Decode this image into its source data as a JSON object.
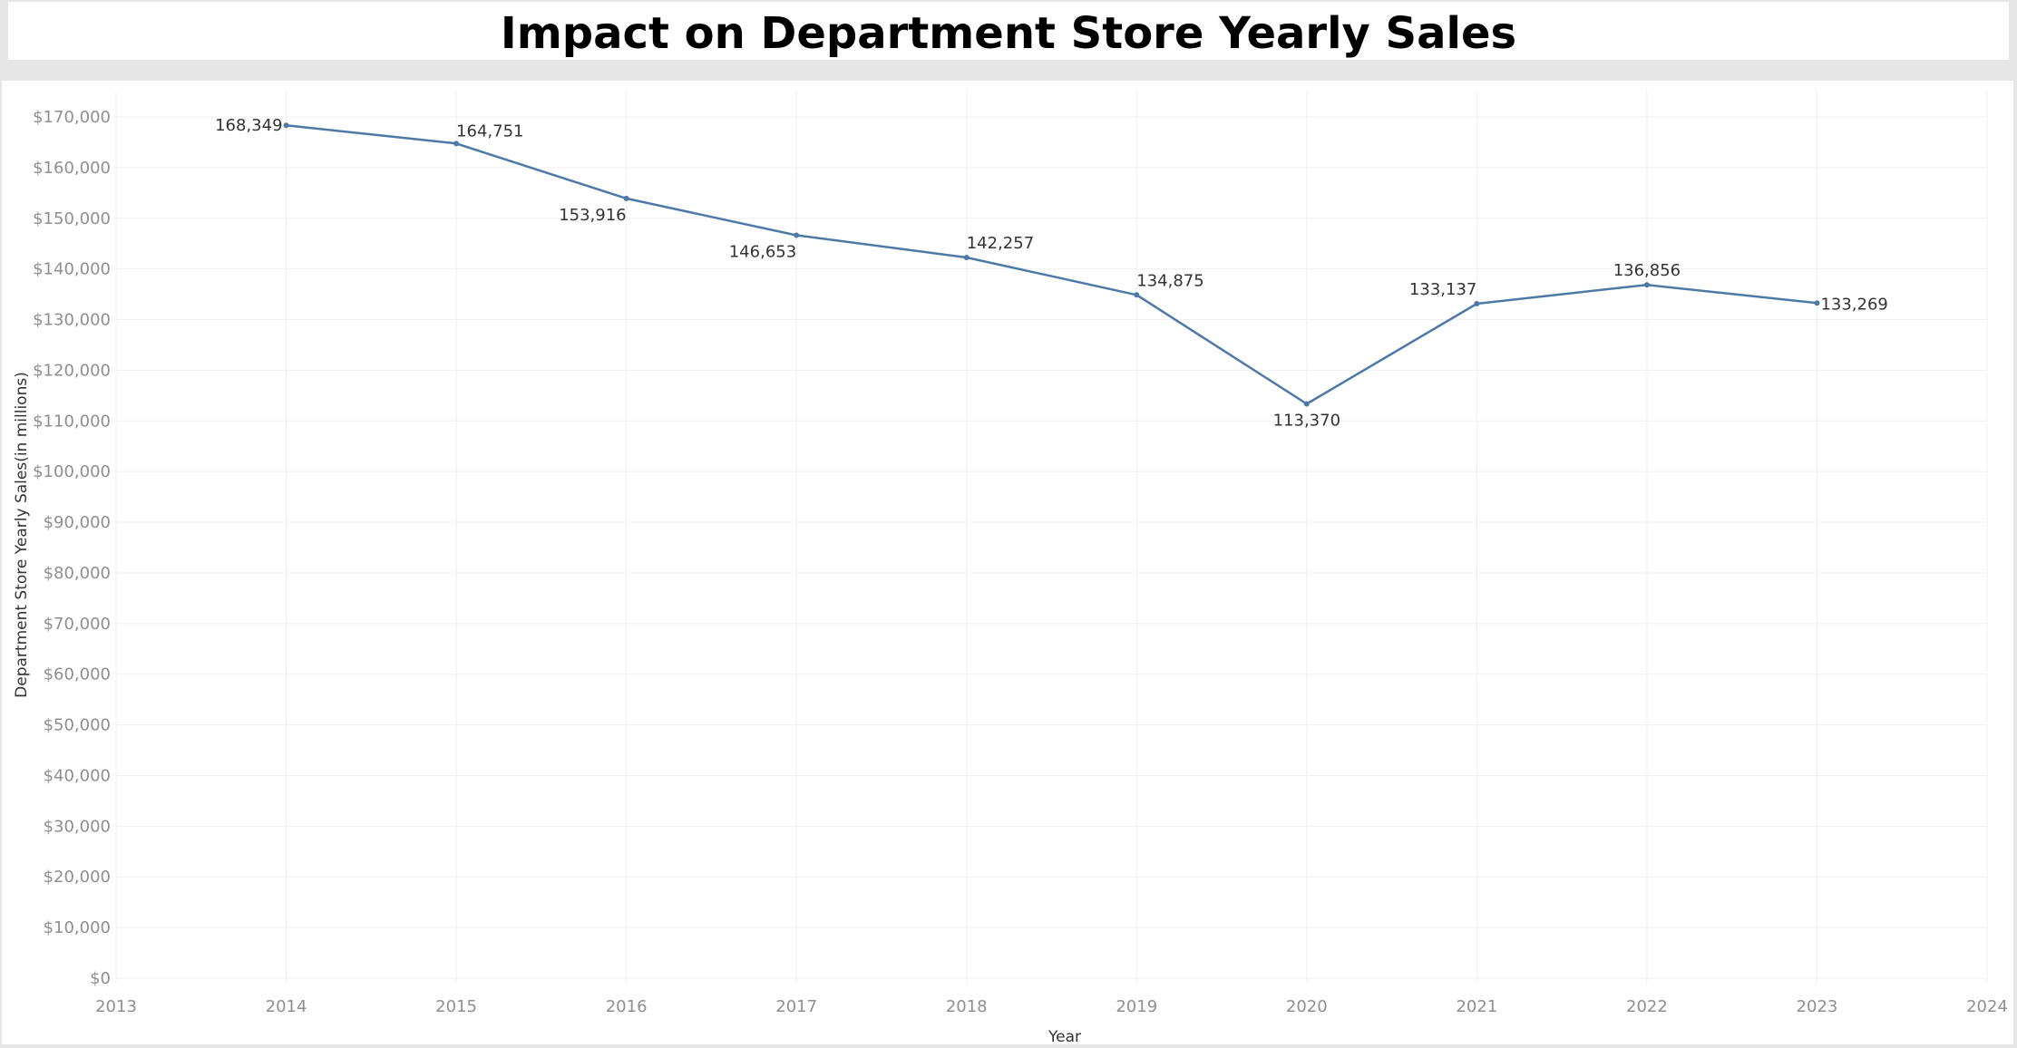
{
  "chart_data": {
    "type": "line",
    "title": "Impact on Department Store Yearly Sales",
    "xlabel": "Year",
    "ylabel": "Department Store Yearly Sales(in millions)",
    "x": [
      2014,
      2015,
      2016,
      2017,
      2018,
      2019,
      2020,
      2021,
      2022,
      2023
    ],
    "values": [
      168349,
      164751,
      153916,
      146653,
      142257,
      134875,
      113370,
      133137,
      136856,
      133269
    ],
    "data_labels": [
      "168,349",
      "164,751",
      "153,916",
      "146,653",
      "142,257",
      "134,875",
      "113,370",
      "133,137",
      "136,856",
      "133,269"
    ],
    "xlim": [
      2013,
      2024
    ],
    "ylim": [
      0,
      170000
    ],
    "x_ticks": [
      "2013",
      "2014",
      "2015",
      "2016",
      "2017",
      "2018",
      "2019",
      "2020",
      "2021",
      "2022",
      "2023",
      "2024"
    ],
    "y_ticks": [
      "$0",
      "$10,000",
      "$20,000",
      "$30,000",
      "$40,000",
      "$50,000",
      "$60,000",
      "$70,000",
      "$80,000",
      "$90,000",
      "$100,000",
      "$110,000",
      "$120,000",
      "$130,000",
      "$140,000",
      "$150,000",
      "$160,000",
      "$170,000"
    ],
    "grid": true,
    "legend": "none",
    "colors": {
      "line": "#4e79a7",
      "grid": "#f0f0f0",
      "tick_text": "#8f8f8f",
      "label_text": "#333333"
    }
  }
}
